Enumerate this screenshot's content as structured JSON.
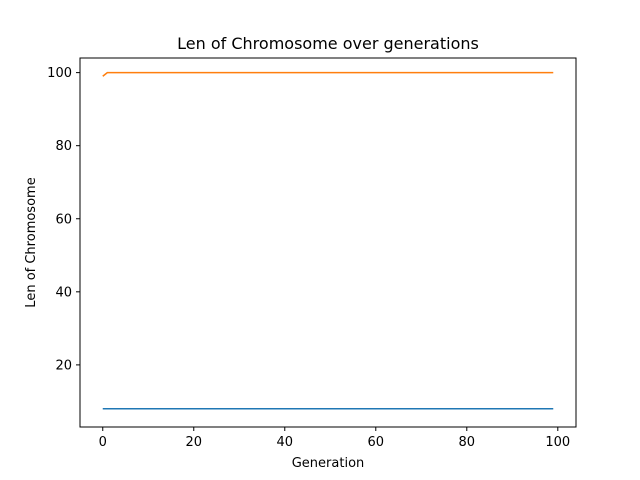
{
  "chart_data": {
    "type": "line",
    "title": "Len of Chromosome over generations",
    "xlabel": "Generation",
    "ylabel": "Len of Chromosome",
    "xlim": [
      -5,
      104
    ],
    "ylim": [
      3,
      104
    ],
    "xticks": [
      0,
      20,
      40,
      60,
      80,
      100
    ],
    "yticks": [
      20,
      40,
      60,
      80,
      100
    ],
    "grid": false,
    "series": [
      {
        "color": "#1f77b4",
        "x": [
          0,
          99
        ],
        "y": [
          8,
          8
        ]
      },
      {
        "color": "#ff7f0e",
        "x": [
          0,
          1,
          2,
          99
        ],
        "y": [
          99,
          100,
          100,
          100
        ]
      }
    ]
  }
}
